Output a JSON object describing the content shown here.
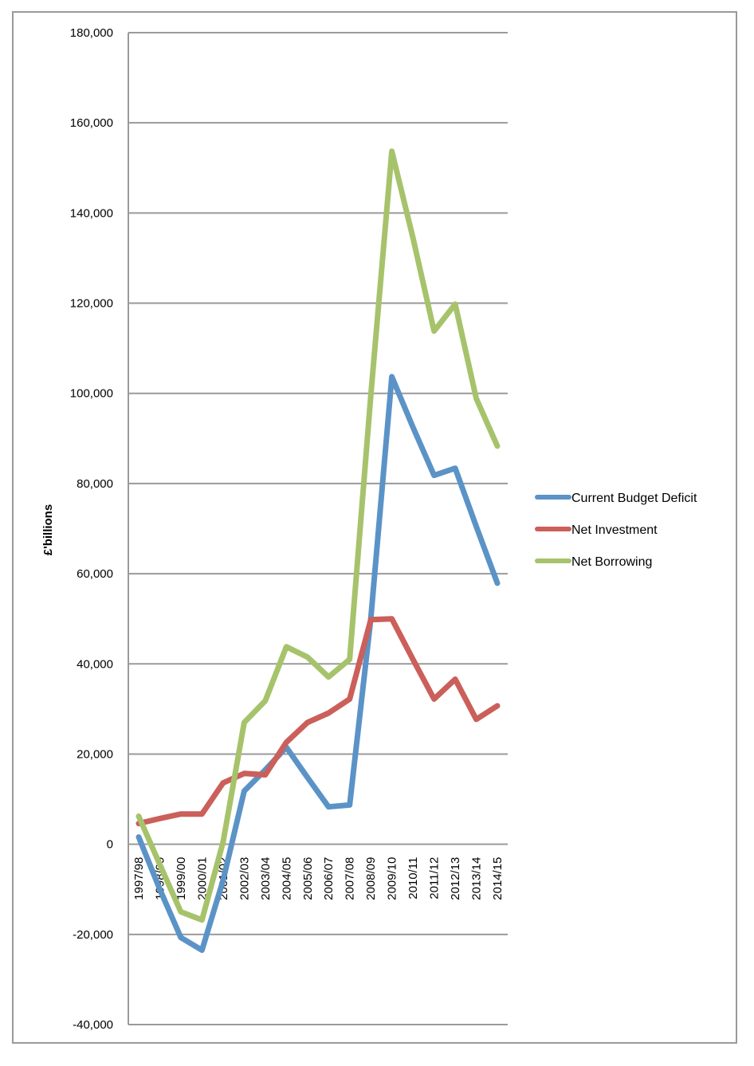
{
  "chart_data": {
    "type": "line",
    "title": "",
    "xlabel": "",
    "ylabel": "£'billions",
    "ylim": [
      -40000,
      180000
    ],
    "ytick_step": 20000,
    "yticks": [
      "180,000",
      "160,000",
      "140,000",
      "120,000",
      "100,000",
      "80,000",
      "60,000",
      "40,000",
      "20,000",
      "0",
      "-20,000",
      "-40,000"
    ],
    "grid": true,
    "legend_position": "right",
    "categories": [
      "1997/98",
      "1998/99",
      "1999/00",
      "2000/01",
      "2001/02",
      "2002/03",
      "2003/04",
      "2004/05",
      "2005/06",
      "2006/07",
      "2007/08",
      "2008/09",
      "2009/10",
      "2010/11",
      "2011/12",
      "2012/13",
      "2013/14",
      "2014/15"
    ],
    "series": [
      {
        "name": "Current Budget Deficit",
        "color": "#5b93c7",
        "values": [
          1600,
          -10000,
          -20700,
          -23500,
          -8000,
          11800,
          16500,
          21500,
          14800,
          8300,
          8700,
          50000,
          103700,
          92500,
          81800,
          83400,
          70500,
          57900
        ]
      },
      {
        "name": "Net Investment",
        "color": "#cb5f5a",
        "values": [
          4600,
          5700,
          6700,
          6700,
          13600,
          15700,
          15400,
          22600,
          27000,
          29100,
          32200,
          49800,
          50000,
          41000,
          32200,
          36600,
          27700,
          30700
        ]
      },
      {
        "name": "Net Borrowing",
        "color": "#a6c36b",
        "values": [
          6200,
          -4500,
          -15000,
          -16800,
          500,
          27000,
          31800,
          43800,
          41500,
          37100,
          41000,
          99500,
          153700,
          134500,
          113800,
          119800,
          98900,
          88300
        ]
      }
    ]
  }
}
